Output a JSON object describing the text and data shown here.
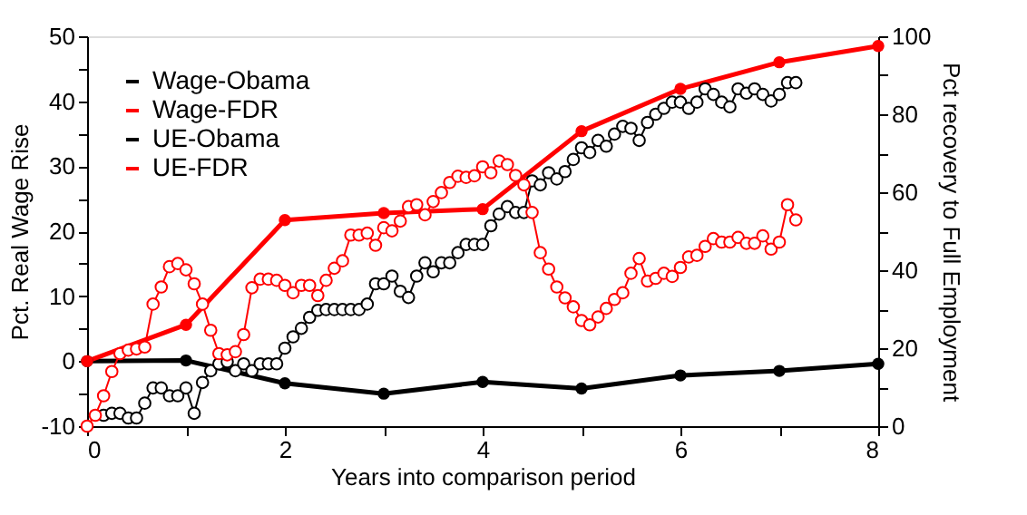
{
  "chart_data": {
    "type": "line",
    "xlabel": "Years into comparison period",
    "ylabel": "Pct. Real Wage Rise",
    "y2label": "Pct recovery to Full Employment",
    "x": [
      0,
      1,
      2,
      3,
      4,
      5,
      6,
      7,
      8
    ],
    "xlim": [
      0,
      8
    ],
    "xticks": [
      0,
      {
        "value": 1,
        "label": null
      },
      2,
      {
        "value": 3,
        "label": null
      },
      4,
      {
        "value": 5,
        "label": null
      },
      6,
      {
        "value": 7,
        "label": null
      },
      8
    ],
    "ylim": [
      -10,
      50
    ],
    "yticks": [
      -10,
      {
        "value": -5,
        "label": null
      },
      0,
      {
        "value": 5,
        "label": null
      },
      10,
      {
        "value": 15,
        "label": null
      },
      20,
      {
        "value": 25,
        "label": null
      },
      30,
      {
        "value": 35,
        "label": null
      },
      40,
      {
        "value": 45,
        "label": null
      },
      50
    ],
    "y2lim": [
      0,
      100
    ],
    "y2ticks": [
      0,
      {
        "value": 10,
        "label": null
      },
      20,
      {
        "value": 30,
        "label": null
      },
      40,
      {
        "value": 50,
        "label": null
      },
      60,
      {
        "value": 70,
        "label": null
      },
      80,
      {
        "value": 90,
        "label": null
      },
      100
    ],
    "grid": false,
    "legend": "top left",
    "marker": "circle",
    "line_style": "solid",
    "series": [
      {
        "name": "Wage-Obama",
        "color": "#000000",
        "values": [
          0,
          0.1,
          -3.4,
          -5.0,
          -3.2,
          -4.2,
          -2.2,
          -1.5,
          -0.4
        ]
      },
      {
        "name": "Wage-FDR",
        "color": "#ff0000",
        "values": [
          0,
          5.6,
          21.7,
          22.8,
          23.4,
          35.4,
          41.9,
          46,
          48.5
        ]
      },
      {
        "name": "UE-Obama",
        "color": "#000000",
        "axis": "y2",
        "x": [
          0.167,
          0.25,
          0.333,
          0.417,
          0.5,
          0.583,
          0.667,
          0.75,
          0.833,
          0.917,
          1,
          1.083,
          1.167,
          1.25,
          1.333,
          1.417,
          1.5,
          1.583,
          1.667,
          1.75,
          1.833,
          1.917,
          2,
          2.083,
          2.167,
          2.25,
          2.333,
          2.417,
          2.5,
          2.583,
          2.667,
          2.75,
          2.833,
          2.917,
          3,
          3.083,
          3.167,
          3.25,
          3.333,
          3.417,
          3.5,
          3.583,
          3.667,
          3.75,
          3.833,
          3.917,
          4,
          4.083,
          4.167,
          4.25,
          4.333,
          4.417,
          4.5,
          4.583,
          4.667,
          4.75,
          4.833,
          4.917,
          5,
          5.083,
          5.167,
          5.25,
          5.333,
          5.417,
          5.5,
          5.583,
          5.667,
          5.75,
          5.833,
          5.917,
          6,
          6.083,
          6.167,
          6.25,
          6.333,
          6.417,
          6.5,
          6.583,
          6.667,
          6.75,
          6.833,
          6.917,
          7,
          7.083,
          7.167
        ],
        "values": [
          2.8,
          3.3,
          3.3,
          2.1,
          2.1,
          5.9,
          9.8,
          9.8,
          7.8,
          7.8,
          9.8,
          3.3,
          11.2,
          14.2,
          16.0,
          16.5,
          14.2,
          16.0,
          14.2,
          16.0,
          16.0,
          16.0,
          20,
          22.9,
          25.1,
          27.9,
          29.7,
          29.9,
          29.9,
          29.9,
          29.9,
          29.9,
          31.3,
          36.5,
          36.5,
          38.5,
          34.6,
          33.0,
          38.5,
          41.9,
          39.6,
          41.9,
          41.9,
          44.5,
          46.6,
          46.6,
          46.6,
          51.4,
          54.4,
          56.3,
          54.8,
          54.8,
          62.9,
          61.9,
          65.0,
          63.4,
          65.3,
          68.4,
          71.4,
          70.2,
          73.3,
          71.8,
          74.9,
          76.9,
          76.4,
          73.3,
          77.9,
          80.0,
          81.5,
          83.1,
          83.1,
          81.5,
          83.1,
          86.5,
          85.1,
          83.1,
          81.9,
          86.5,
          85.4,
          86.5,
          85.1,
          83.4,
          85.1,
          88.1,
          88.1
        ]
      },
      {
        "name": "UE-FDR",
        "color": "#ff0000",
        "axis": "y2",
        "x": [
          0,
          0.083,
          0.167,
          0.25,
          0.333,
          0.417,
          0.5,
          0.583,
          0.667,
          0.75,
          0.833,
          0.917,
          1,
          1.083,
          1.167,
          1.25,
          1.333,
          1.417,
          1.5,
          1.583,
          1.667,
          1.75,
          1.833,
          1.917,
          2,
          2.083,
          2.167,
          2.25,
          2.333,
          2.417,
          2.5,
          2.583,
          2.667,
          2.75,
          2.833,
          2.917,
          3,
          3.083,
          3.167,
          3.25,
          3.333,
          3.417,
          3.5,
          3.583,
          3.667,
          3.75,
          3.833,
          3.917,
          4,
          4.083,
          4.167,
          4.25,
          4.333,
          4.417,
          4.5,
          4.583,
          4.667,
          4.75,
          4.833,
          4.917,
          5,
          5.083,
          5.167,
          5.25,
          5.333,
          5.417,
          5.5,
          5.583,
          5.667,
          5.75,
          5.833,
          5.917,
          6,
          6.083,
          6.167,
          6.25,
          6.333,
          6.417,
          6.5,
          6.583,
          6.667,
          6.75,
          6.833,
          6.917,
          7,
          7.083,
          7.167
        ],
        "values": [
          0,
          2.8,
          7.8,
          14.0,
          18.6,
          19.5,
          19.8,
          20.3,
          31.3,
          35.7,
          40.9,
          41.7,
          40.1,
          36.5,
          31.3,
          24.6,
          18.6,
          18.3,
          19.1,
          23.5,
          35.5,
          37.7,
          37.7,
          37.4,
          36.1,
          34.2,
          36.1,
          36.1,
          33.5,
          37.4,
          40.5,
          42.4,
          49.0,
          49.0,
          49.5,
          46.4,
          50.9,
          50.1,
          52.6,
          56.3,
          56.8,
          54.2,
          57.6,
          59.9,
          62.5,
          64.1,
          63.8,
          64.2,
          66.5,
          65.0,
          68.0,
          67.1,
          64.3,
          61.9,
          54.8,
          44.5,
          40.3,
          35.7,
          32.9,
          30.6,
          27.1,
          26.0,
          28.0,
          30.2,
          32.5,
          34.2,
          39.2,
          43.0,
          37.2,
          37.9,
          39.2,
          38.4,
          40.7,
          43.4,
          43.8,
          46.1,
          48.1,
          47.2,
          47.2,
          48.4,
          46.9,
          46.9,
          48.8,
          45.4,
          47.2,
          56.8,
          52.9
        ]
      }
    ]
  }
}
